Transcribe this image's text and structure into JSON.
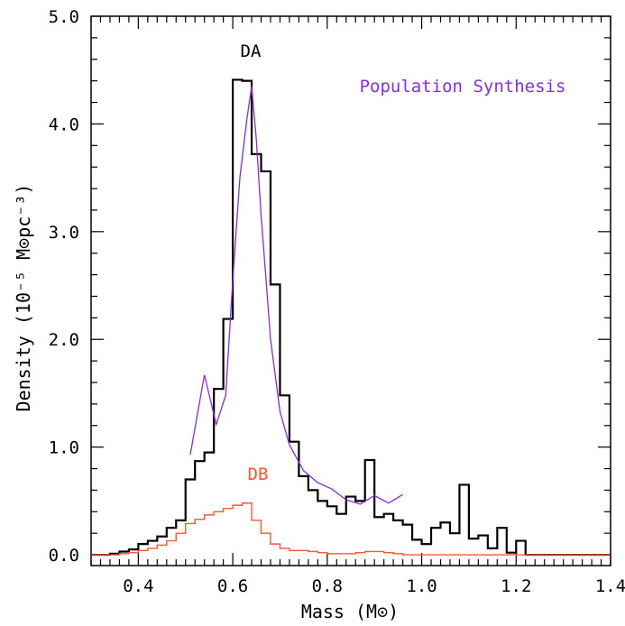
{
  "chart_data": {
    "type": "line",
    "xlabel": "Mass (M⊙)",
    "ylabel": "Density (10⁻⁵ M⊙pc⁻³)",
    "xlim": [
      0.3,
      1.4
    ],
    "ylim": [
      -0.1,
      5.0
    ],
    "xticks": [
      "0.4",
      "0.6",
      "0.8",
      "1.0",
      "1.2",
      "1.4"
    ],
    "yticks": [
      "0.0",
      "1.0",
      "2.0",
      "3.0",
      "4.0",
      "5.0"
    ],
    "xtick_values": [
      0.4,
      0.6,
      0.8,
      1.0,
      1.2,
      1.4
    ],
    "ytick_values": [
      0.0,
      1.0,
      2.0,
      3.0,
      4.0,
      5.0
    ],
    "grid": false,
    "annotations": [
      {
        "text": "DA",
        "color": "#000000"
      },
      {
        "text": "Population Synthesis",
        "color": "#8a2be2"
      },
      {
        "text": "DB",
        "color": "#ff5533"
      }
    ],
    "series": [
      {
        "name": "DA",
        "style": "step",
        "color": "#000000",
        "bin_width": 0.02,
        "bin_starts": [
          0.3,
          0.32,
          0.34,
          0.36,
          0.38,
          0.4,
          0.42,
          0.44,
          0.46,
          0.48,
          0.5,
          0.52,
          0.54,
          0.56,
          0.58,
          0.6,
          0.62,
          0.64,
          0.66,
          0.68,
          0.7,
          0.72,
          0.74,
          0.76,
          0.78,
          0.8,
          0.82,
          0.84,
          0.86,
          0.88,
          0.9,
          0.92,
          0.94,
          0.96,
          0.98,
          1.0,
          1.02,
          1.04,
          1.06,
          1.08,
          1.1,
          1.12,
          1.14,
          1.16,
          1.18,
          1.2,
          1.22,
          1.24,
          1.26,
          1.28,
          1.3,
          1.32,
          1.34,
          1.36,
          1.38
        ],
        "values": [
          0.0,
          0.0,
          0.01,
          0.03,
          0.05,
          0.1,
          0.13,
          0.17,
          0.25,
          0.32,
          0.7,
          0.87,
          0.95,
          1.54,
          2.19,
          4.41,
          4.4,
          3.72,
          3.56,
          2.51,
          1.48,
          1.05,
          0.73,
          0.6,
          0.5,
          0.45,
          0.38,
          0.54,
          0.5,
          0.88,
          0.35,
          0.38,
          0.32,
          0.28,
          0.14,
          0.1,
          0.25,
          0.3,
          0.2,
          0.65,
          0.15,
          0.18,
          0.06,
          0.25,
          0.02,
          0.13,
          0.0,
          0.0,
          0.0,
          0.0,
          0.0,
          0.0,
          0.0,
          0.0,
          0.0
        ]
      },
      {
        "name": "DB",
        "style": "step",
        "color": "#ff5533",
        "bin_width": 0.02,
        "bin_starts": [
          0.3,
          0.32,
          0.34,
          0.36,
          0.38,
          0.4,
          0.42,
          0.44,
          0.46,
          0.48,
          0.5,
          0.52,
          0.54,
          0.56,
          0.58,
          0.6,
          0.62,
          0.64,
          0.66,
          0.68,
          0.7,
          0.72,
          0.74,
          0.76,
          0.78,
          0.8,
          0.82,
          0.84,
          0.86,
          0.88,
          0.9,
          0.92,
          0.94,
          0.96,
          0.98,
          1.0,
          1.02,
          1.04,
          1.06,
          1.08,
          1.1,
          1.12,
          1.14,
          1.16,
          1.18,
          1.2,
          1.22,
          1.24,
          1.26,
          1.28,
          1.3,
          1.32,
          1.34,
          1.36,
          1.38
        ],
        "values": [
          0.0,
          0.0,
          0.0,
          0.01,
          0.02,
          0.04,
          0.06,
          0.09,
          0.13,
          0.2,
          0.29,
          0.33,
          0.37,
          0.4,
          0.43,
          0.46,
          0.48,
          0.32,
          0.2,
          0.1,
          0.06,
          0.04,
          0.04,
          0.03,
          0.02,
          0.01,
          0.01,
          0.01,
          0.02,
          0.03,
          0.03,
          0.02,
          0.01,
          0.0,
          0.0,
          0.0,
          0.0,
          0.0,
          0.0,
          0.0,
          0.0,
          0.0,
          0.0,
          0.0,
          0.0,
          0.0,
          0.0,
          0.0,
          0.0,
          0.0,
          0.0,
          0.0,
          0.0,
          0.0,
          0.0
        ]
      },
      {
        "name": "Population Synthesis",
        "style": "line",
        "color": "#8a2be2",
        "x": [
          0.51,
          0.54,
          0.565,
          0.585,
          0.6,
          0.615,
          0.63,
          0.64,
          0.65,
          0.66,
          0.67,
          0.68,
          0.7,
          0.72,
          0.75,
          0.78,
          0.81,
          0.84,
          0.87,
          0.9,
          0.93,
          0.96
        ],
        "y": [
          0.93,
          1.67,
          1.21,
          1.48,
          2.55,
          3.5,
          4.05,
          4.35,
          3.85,
          3.15,
          2.58,
          2.0,
          1.33,
          1.02,
          0.78,
          0.67,
          0.61,
          0.51,
          0.47,
          0.55,
          0.48,
          0.56
        ]
      }
    ]
  }
}
